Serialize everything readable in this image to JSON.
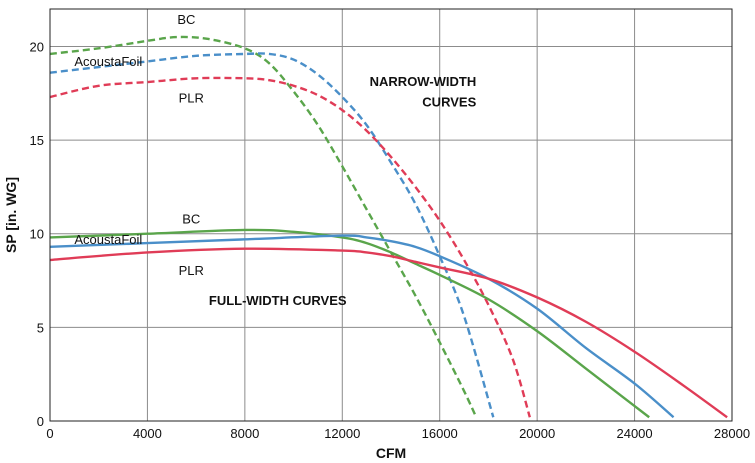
{
  "chart_data": {
    "type": "line",
    "title": "",
    "xlabel": "CFM",
    "ylabel": "SP [in. WG]",
    "xlim": [
      0,
      28000
    ],
    "ylim": [
      0,
      22
    ],
    "xticks": [
      0,
      4000,
      8000,
      12000,
      16000,
      20000,
      24000,
      28000
    ],
    "xtick_labels": [
      "0",
      "4000",
      "8000",
      "12000",
      "16000",
      "20000",
      "24000",
      "28000"
    ],
    "yticks": [
      0,
      5,
      10,
      15,
      20
    ],
    "ytick_labels": [
      "0",
      "5",
      "10",
      "15",
      "20"
    ],
    "grid": true,
    "colors": {
      "BC": "#5aa54b",
      "AcoustaFoil": "#4a8fc9",
      "PLR": "#e03c57"
    },
    "series": [
      {
        "name": "BC",
        "group": "narrow",
        "dashed": true,
        "x": [
          0,
          2000,
          4000,
          5200,
          6500,
          8000,
          9000,
          10000,
          11000,
          12000,
          13000,
          14000,
          15000,
          16000,
          17000,
          17500
        ],
        "y": [
          19.6,
          19.9,
          20.3,
          20.5,
          20.4,
          19.9,
          19.1,
          17.6,
          15.8,
          13.6,
          11.3,
          9.0,
          6.7,
          4.2,
          1.6,
          0.2
        ]
      },
      {
        "name": "AcoustaFoil",
        "group": "narrow",
        "dashed": true,
        "x": [
          0,
          2000,
          4000,
          6000,
          8000,
          9000,
          10000,
          11000,
          12000,
          13000,
          14000,
          15000,
          16000,
          17000,
          18200
        ],
        "y": [
          18.6,
          18.9,
          19.2,
          19.5,
          19.6,
          19.6,
          19.3,
          18.5,
          17.3,
          15.8,
          13.8,
          11.6,
          8.8,
          5.6,
          0.2
        ]
      },
      {
        "name": "PLR",
        "group": "narrow",
        "dashed": true,
        "x": [
          0,
          2000,
          4000,
          6000,
          8000,
          9000,
          10000,
          11000,
          12000,
          13000,
          14000,
          15000,
          16000,
          17000,
          18000,
          19000,
          19700
        ],
        "y": [
          17.3,
          17.9,
          18.1,
          18.3,
          18.3,
          18.2,
          17.9,
          17.4,
          16.6,
          15.5,
          14.1,
          12.5,
          10.7,
          8.6,
          6.2,
          3.3,
          0.2
        ]
      },
      {
        "name": "BC",
        "group": "full",
        "dashed": false,
        "x": [
          0,
          4000,
          8000,
          10000,
          12000,
          13000,
          14000,
          15000,
          16000,
          18000,
          20000,
          22000,
          23500,
          24600
        ],
        "y": [
          9.8,
          10.0,
          10.2,
          10.1,
          9.8,
          9.5,
          9.0,
          8.4,
          7.8,
          6.5,
          4.8,
          2.8,
          1.3,
          0.2
        ]
      },
      {
        "name": "AcoustaFoil",
        "group": "full",
        "dashed": false,
        "x": [
          0,
          4000,
          8000,
          12000,
          13000,
          14000,
          15000,
          16000,
          18000,
          20000,
          22000,
          24000,
          25600
        ],
        "y": [
          9.3,
          9.5,
          9.7,
          9.9,
          9.8,
          9.6,
          9.3,
          8.8,
          7.6,
          6.0,
          3.9,
          2.0,
          0.2
        ]
      },
      {
        "name": "PLR",
        "group": "full",
        "dashed": false,
        "x": [
          0,
          4000,
          8000,
          12000,
          13000,
          14000,
          15000,
          16000,
          18000,
          20000,
          22000,
          24000,
          26000,
          27800
        ],
        "y": [
          8.6,
          9.0,
          9.2,
          9.1,
          9.0,
          8.8,
          8.5,
          8.2,
          7.6,
          6.6,
          5.3,
          3.7,
          1.9,
          0.2
        ]
      }
    ],
    "series_labels": [
      {
        "text": "BC",
        "x": 5600,
        "y": 21.2,
        "anchor": "middle"
      },
      {
        "text": "AcoustaFoil",
        "x": 1000,
        "y": 18.95,
        "anchor": "start"
      },
      {
        "text": "PLR",
        "x": 5800,
        "y": 17.0,
        "anchor": "middle"
      },
      {
        "text": "BC",
        "x": 5800,
        "y": 10.55,
        "anchor": "middle"
      },
      {
        "text": "AcoustaFoil",
        "x": 1000,
        "y": 9.45,
        "anchor": "start"
      },
      {
        "text": "PLR",
        "x": 5800,
        "y": 7.8,
        "anchor": "middle"
      }
    ],
    "annotations": [
      {
        "text": "NARROW-WIDTH",
        "x": 17500,
        "y": 17.9,
        "anchor": "end"
      },
      {
        "text": "CURVES",
        "x": 17500,
        "y": 16.8,
        "anchor": "end"
      },
      {
        "text": "FULL-WIDTH CURVES",
        "x": 9350,
        "y": 6.2,
        "anchor": "middle"
      }
    ]
  }
}
